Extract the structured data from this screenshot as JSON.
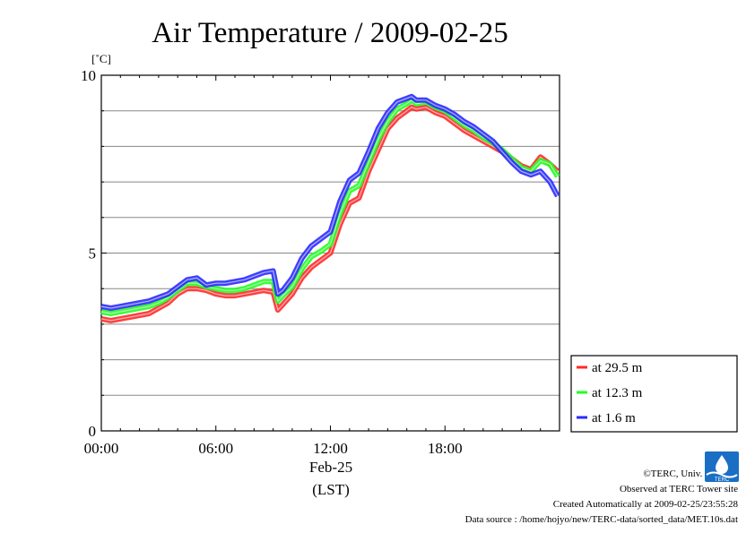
{
  "chart_data": {
    "type": "line",
    "title": "Air Temperature / 2009-02-25",
    "ylabel": "[˚C]",
    "xlabel_date": "Feb-25",
    "xlabel_unit": "(LST)",
    "ylim": [
      0,
      10
    ],
    "xlim_hours": [
      0,
      24
    ],
    "x_ticks": [
      "00:00",
      "06:00",
      "12:00",
      "18:00"
    ],
    "y_ticks": [
      "0",
      "5",
      "10"
    ],
    "grid": true,
    "legend_position": "right-bottom",
    "x_hours": [
      0,
      0.5,
      1,
      1.5,
      2,
      2.5,
      3,
      3.5,
      4,
      4.5,
      5,
      5.5,
      6,
      6.5,
      7,
      7.5,
      8,
      8.5,
      9,
      9.25,
      9.5,
      10,
      10.5,
      11,
      11.5,
      12,
      12.5,
      13,
      13.5,
      14,
      14.5,
      15,
      15.5,
      16,
      16.25,
      16.5,
      17,
      17.5,
      18,
      18.5,
      19,
      19.5,
      20,
      20.5,
      21,
      21.5,
      22,
      22.5,
      23,
      23.5,
      23.9
    ],
    "series": [
      {
        "name": "at 29.5 m",
        "color": "#ff2a2a",
        "values": [
          3.15,
          3.1,
          3.15,
          3.2,
          3.25,
          3.3,
          3.45,
          3.6,
          3.85,
          4.0,
          4.0,
          3.95,
          3.85,
          3.8,
          3.8,
          3.85,
          3.9,
          3.95,
          3.9,
          3.4,
          3.55,
          3.85,
          4.3,
          4.6,
          4.8,
          5.0,
          5.8,
          6.4,
          6.55,
          7.3,
          7.9,
          8.5,
          8.8,
          9.0,
          9.1,
          9.05,
          9.1,
          8.95,
          8.85,
          8.65,
          8.45,
          8.3,
          8.15,
          8.0,
          7.85,
          7.65,
          7.45,
          7.35,
          7.7,
          7.5,
          7.3
        ]
      },
      {
        "name": "at 12.3 m",
        "color": "#22ff22",
        "values": [
          3.35,
          3.3,
          3.35,
          3.4,
          3.45,
          3.5,
          3.6,
          3.75,
          3.95,
          4.15,
          4.15,
          4.05,
          4.0,
          3.95,
          3.95,
          4.0,
          4.1,
          4.2,
          4.2,
          3.65,
          3.8,
          4.05,
          4.55,
          4.9,
          5.05,
          5.25,
          6.1,
          6.75,
          6.9,
          7.55,
          8.2,
          8.7,
          9.05,
          9.2,
          9.3,
          9.2,
          9.25,
          9.1,
          9.0,
          8.8,
          8.6,
          8.45,
          8.25,
          8.1,
          7.9,
          7.65,
          7.4,
          7.3,
          7.6,
          7.5,
          7.15
        ]
      },
      {
        "name": "at 1.6 m",
        "color": "#2a2aff",
        "values": [
          3.5,
          3.45,
          3.5,
          3.55,
          3.6,
          3.65,
          3.75,
          3.85,
          4.05,
          4.25,
          4.3,
          4.1,
          4.15,
          4.15,
          4.2,
          4.25,
          4.35,
          4.45,
          4.5,
          3.85,
          3.95,
          4.3,
          4.85,
          5.2,
          5.4,
          5.6,
          6.45,
          7.05,
          7.25,
          7.85,
          8.5,
          8.95,
          9.25,
          9.35,
          9.4,
          9.3,
          9.3,
          9.15,
          9.05,
          8.9,
          8.7,
          8.55,
          8.35,
          8.15,
          7.85,
          7.55,
          7.3,
          7.2,
          7.3,
          7.0,
          6.6
        ]
      }
    ]
  },
  "credits": {
    "line1": "©TERC, Univ. Tsukuba",
    "line2": "Observed at TERC Tower site",
    "line3": "Created Automatically at 2009-02-25/23:55:28",
    "line4": "Data source : /home/hojyo/new/TERC-data/sorted_data/MET.10s.dat"
  },
  "logo": {
    "text": "TERC",
    "color": "#1a6fc4"
  }
}
